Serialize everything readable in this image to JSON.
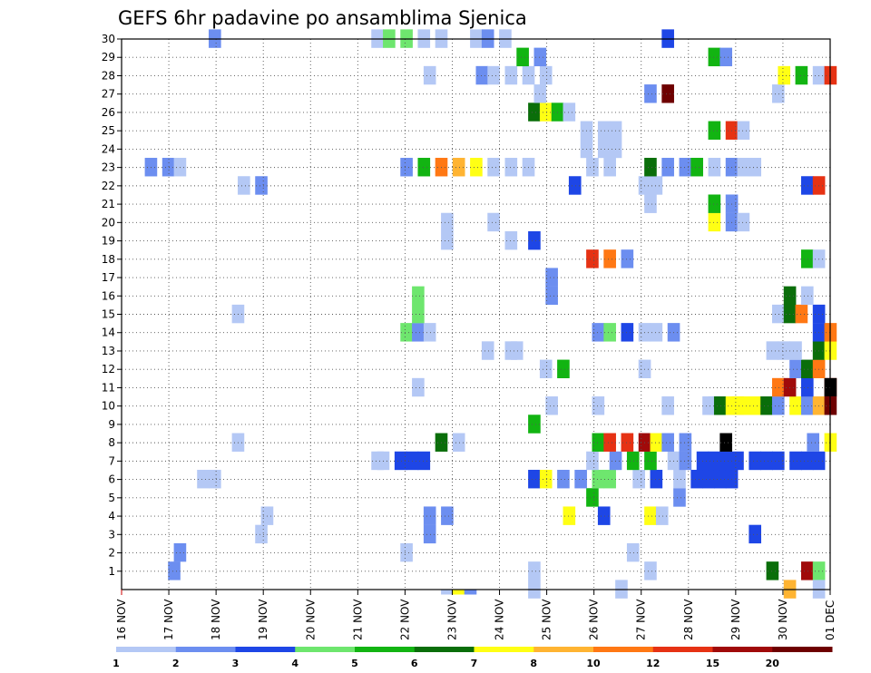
{
  "chart_data": {
    "type": "heatmap",
    "title": "GEFS 6hr padavine po ansamblima Sjenica",
    "x_tick_labels": [
      "16 NOV",
      "17 NOV",
      "18 NOV",
      "19 NOV",
      "20 NOV",
      "21 NOV",
      "22 NOV",
      "23 NOV",
      "24 NOV",
      "25 NOV",
      "26 NOV",
      "27 NOV",
      "28 NOV",
      "29 NOV",
      "30 NOV",
      "01 DEC"
    ],
    "y_tick_labels": [
      "1",
      "2",
      "3",
      "4",
      "5",
      "6",
      "7",
      "8",
      "9",
      "10",
      "11",
      "12",
      "13",
      "14",
      "15",
      "16",
      "17",
      "18",
      "19",
      "20",
      "21",
      "22",
      "23",
      "24",
      "25",
      "26",
      "27",
      "28",
      "29",
      "30"
    ],
    "xlim_days": [
      0,
      15
    ],
    "ylim": [
      0,
      30
    ],
    "grid": true,
    "colorbar": {
      "levels": [
        "1",
        "2",
        "3",
        "4",
        "5",
        "6",
        "7",
        "8",
        "10",
        "12",
        "15",
        "20"
      ],
      "colors": [
        "#b4c8f5",
        "#6c8ef0",
        "#1e46e6",
        "#6ee66e",
        "#12b412",
        "#0a6e0a",
        "#ffff14",
        "#ffb432",
        "#ff7814",
        "#e63214",
        "#a00a0a",
        "#6e0000"
      ],
      "placement": "bottom"
    },
    "cells": [
      [
        0.4,
        1,
        1
      ],
      [
        0.45,
        1,
        2
      ],
      [
        4.25,
        0,
        0
      ],
      [
        4.35,
        0,
        2
      ],
      [
        4.5,
        0,
        1
      ],
      [
        5.4,
        2,
        3
      ],
      [
        5.55,
        5,
        1
      ],
      [
        5.7,
        7,
        0
      ],
      [
        5.85,
        10,
        1
      ],
      [
        5.95,
        3,
        1
      ],
      [
        5.95,
        0,
        0
      ],
      [
        2.6,
        1,
        3
      ],
      [
        4.5,
        6,
        4
      ],
      [
        4.75,
        1,
        5
      ],
      [
        5.05,
        1,
        10
      ],
      [
        5.25,
        8,
        10
      ],
      [
        6.05,
        9,
        11
      ],
      [
        6.05,
        13,
        11
      ],
      [
        1.15,
        0,
        3
      ],
      [
        1.2,
        0,
        4
      ],
      [
        2.4,
        0,
        2
      ],
      [
        3.5,
        0,
        1
      ],
      [
        3.5,
        0,
        0
      ],
      [
        2.6,
        1,
        4
      ],
      [
        2.75,
        1,
        4
      ],
      [
        3.8,
        6,
        4
      ],
      [
        4.1,
        2,
        4
      ],
      [
        4.6,
        0,
        4
      ],
      [
        4.0,
        4,
        5
      ],
      [
        0.65,
        0,
        6
      ],
      [
        0.75,
        0,
        6
      ],
      [
        3.5,
        2,
        6
      ],
      [
        3.6,
        6,
        6
      ],
      [
        3.75,
        1,
        6
      ],
      [
        3.9,
        1,
        6
      ],
      [
        4.05,
        3,
        6
      ],
      [
        4.15,
        3,
        6
      ],
      [
        4.4,
        0,
        6
      ],
      [
        4.55,
        2,
        6
      ],
      [
        4.75,
        0,
        6
      ],
      [
        4.9,
        2,
        6
      ],
      [
        5.0,
        2,
        6
      ],
      [
        5.1,
        2,
        6
      ],
      [
        5.2,
        2,
        6
      ],
      [
        2.15,
        0,
        7
      ],
      [
        2.2,
        0,
        7
      ],
      [
        2.35,
        2,
        7
      ],
      [
        2.45,
        2,
        7
      ],
      [
        2.55,
        2,
        7
      ],
      [
        4.0,
        0,
        7
      ],
      [
        4.2,
        1,
        7
      ],
      [
        4.35,
        4,
        7
      ],
      [
        4.5,
        4,
        7
      ],
      [
        4.7,
        0,
        7
      ],
      [
        4.8,
        1,
        7
      ],
      [
        4.95,
        2,
        7
      ],
      [
        5.05,
        2,
        7
      ],
      [
        5.15,
        2,
        7
      ],
      [
        5.25,
        2,
        7
      ],
      [
        5.4,
        2,
        7
      ],
      [
        5.5,
        2,
        7
      ],
      [
        5.6,
        2,
        7
      ],
      [
        5.75,
        2,
        7
      ],
      [
        5.85,
        2,
        7
      ],
      [
        5.95,
        2,
        7
      ],
      [
        0.95,
        0,
        8
      ],
      [
        2.7,
        5,
        8
      ],
      [
        2.85,
        0,
        8
      ],
      [
        4.05,
        4,
        8
      ],
      [
        4.15,
        9,
        8
      ],
      [
        4.3,
        9,
        8
      ],
      [
        4.45,
        10,
        8
      ],
      [
        4.55,
        6,
        8
      ],
      [
        4.65,
        1,
        8
      ],
      [
        4.8,
        1,
        8
      ],
      [
        5.15,
        12,
        8
      ],
      [
        5.9,
        1,
        8
      ],
      [
        6.05,
        6,
        8
      ],
      [
        3.5,
        4,
        9
      ],
      [
        3.65,
        0,
        10
      ],
      [
        4.05,
        0,
        10
      ],
      [
        4.65,
        0,
        10
      ],
      [
        5.0,
        0,
        10
      ],
      [
        5.1,
        5,
        10
      ],
      [
        5.2,
        6,
        10
      ],
      [
        5.3,
        6,
        10
      ],
      [
        5.4,
        6,
        10
      ],
      [
        5.5,
        5,
        10
      ],
      [
        5.6,
        1,
        10
      ],
      [
        5.75,
        6,
        10
      ],
      [
        5.85,
        1,
        10
      ],
      [
        5.95,
        7,
        10
      ],
      [
        6.05,
        11,
        10
      ],
      [
        2.5,
        0,
        11
      ],
      [
        5.6,
        8,
        11
      ],
      [
        5.7,
        10,
        11
      ],
      [
        5.85,
        2,
        11
      ],
      [
        3.6,
        0,
        12
      ],
      [
        3.75,
        4,
        12
      ],
      [
        4.45,
        0,
        12
      ],
      [
        5.75,
        1,
        12
      ],
      [
        5.85,
        5,
        12
      ],
      [
        5.95,
        8,
        12
      ],
      [
        3.1,
        0,
        13
      ],
      [
        3.3,
        0,
        13
      ],
      [
        3.35,
        0,
        13
      ],
      [
        5.55,
        0,
        13
      ],
      [
        5.65,
        0,
        13
      ],
      [
        5.75,
        0,
        13
      ],
      [
        5.95,
        5,
        13
      ],
      [
        6.05,
        6,
        13
      ],
      [
        2.4,
        3,
        14
      ],
      [
        2.5,
        1,
        14
      ],
      [
        2.6,
        0,
        14
      ],
      [
        4.05,
        1,
        14
      ],
      [
        4.15,
        3,
        14
      ],
      [
        4.3,
        2,
        14
      ],
      [
        4.45,
        0,
        14
      ],
      [
        4.55,
        0,
        14
      ],
      [
        4.7,
        1,
        14
      ],
      [
        5.95,
        2,
        14
      ],
      [
        6.05,
        8,
        14
      ],
      [
        0.95,
        0,
        15
      ],
      [
        2.5,
        3,
        15
      ],
      [
        5.6,
        0,
        15
      ],
      [
        5.7,
        5,
        15
      ],
      [
        5.8,
        8,
        15
      ],
      [
        5.95,
        2,
        15
      ],
      [
        2.5,
        3,
        16
      ],
      [
        3.65,
        1,
        16
      ],
      [
        5.7,
        5,
        16
      ],
      [
        5.85,
        0,
        16
      ],
      [
        3.65,
        1,
        17
      ],
      [
        4.0,
        9,
        18
      ],
      [
        4.15,
        8,
        18
      ],
      [
        4.3,
        1,
        18
      ],
      [
        5.85,
        4,
        18
      ],
      [
        5.95,
        0,
        18
      ],
      [
        2.75,
        0,
        19
      ],
      [
        3.3,
        0,
        19
      ],
      [
        3.5,
        2,
        19
      ],
      [
        2.75,
        0,
        20
      ],
      [
        3.15,
        0,
        20
      ],
      [
        5.05,
        6,
        20
      ],
      [
        5.2,
        1,
        20
      ],
      [
        5.3,
        0,
        20
      ],
      [
        4.5,
        0,
        21
      ],
      [
        5.05,
        4,
        21
      ],
      [
        5.2,
        1,
        21
      ],
      [
        1.0,
        0,
        22
      ],
      [
        1.15,
        1,
        22
      ],
      [
        3.85,
        2,
        22
      ],
      [
        4.45,
        0,
        22
      ],
      [
        4.55,
        0,
        22
      ],
      [
        5.85,
        2,
        22
      ],
      [
        5.95,
        9,
        22
      ],
      [
        0.2,
        1,
        23
      ],
      [
        0.35,
        1,
        23
      ],
      [
        0.45,
        0,
        23
      ],
      [
        2.4,
        1,
        23
      ],
      [
        2.55,
        4,
        23
      ],
      [
        2.7,
        8,
        23
      ],
      [
        2.85,
        7,
        23
      ],
      [
        3.0,
        6,
        23
      ],
      [
        3.15,
        0,
        23
      ],
      [
        3.3,
        0,
        23
      ],
      [
        3.45,
        0,
        23
      ],
      [
        4.0,
        0,
        23
      ],
      [
        4.15,
        0,
        23
      ],
      [
        4.5,
        5,
        23
      ],
      [
        4.65,
        1,
        23
      ],
      [
        4.8,
        1,
        23
      ],
      [
        4.9,
        4,
        23
      ],
      [
        5.05,
        0,
        23
      ],
      [
        5.2,
        1,
        23
      ],
      [
        5.3,
        0,
        23
      ],
      [
        5.4,
        0,
        23
      ],
      [
        3.95,
        0,
        24
      ],
      [
        4.1,
        0,
        24
      ],
      [
        4.2,
        0,
        24
      ],
      [
        3.95,
        0,
        25
      ],
      [
        4.1,
        0,
        25
      ],
      [
        4.2,
        0,
        25
      ],
      [
        5.05,
        4,
        25
      ],
      [
        5.2,
        9,
        25
      ],
      [
        5.3,
        0,
        25
      ],
      [
        3.5,
        5,
        26
      ],
      [
        3.6,
        6,
        26
      ],
      [
        3.7,
        4,
        26
      ],
      [
        3.8,
        0,
        26
      ],
      [
        3.55,
        0,
        27
      ],
      [
        4.5,
        1,
        27
      ],
      [
        4.65,
        11,
        27
      ],
      [
        5.6,
        0,
        27
      ],
      [
        2.6,
        0,
        28
      ],
      [
        3.05,
        1,
        28
      ],
      [
        3.15,
        0,
        28
      ],
      [
        3.3,
        0,
        28
      ],
      [
        3.45,
        0,
        28
      ],
      [
        3.6,
        0,
        28
      ],
      [
        5.65,
        6,
        28
      ],
      [
        5.8,
        4,
        28
      ],
      [
        5.95,
        0,
        28
      ],
      [
        6.05,
        9,
        28
      ],
      [
        3.4,
        4,
        29
      ],
      [
        3.55,
        1,
        29
      ],
      [
        5.05,
        4,
        29
      ],
      [
        5.15,
        1,
        29
      ],
      [
        0.75,
        1,
        30
      ],
      [
        2.15,
        0,
        30
      ],
      [
        2.25,
        3,
        30
      ],
      [
        2.4,
        3,
        30
      ],
      [
        2.55,
        0,
        30
      ],
      [
        2.7,
        0,
        30
      ],
      [
        3.0,
        0,
        30
      ],
      [
        3.1,
        1,
        30
      ],
      [
        3.25,
        0,
        30
      ],
      [
        4.65,
        2,
        30
      ]
    ],
    "bottom_row_cells": [
      [
        2.75,
        0
      ],
      [
        2.85,
        6
      ],
      [
        2.95,
        1
      ]
    ]
  }
}
